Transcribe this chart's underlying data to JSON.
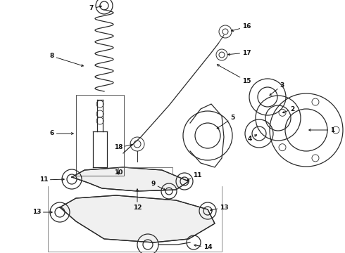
{
  "bg_color": "#ffffff",
  "line_color": "#2a2a2a",
  "text_color": "#111111",
  "figsize": [
    4.9,
    3.6
  ],
  "dpi": 100,
  "xlim": [
    0,
    490
  ],
  "ylim": [
    0,
    360
  ]
}
